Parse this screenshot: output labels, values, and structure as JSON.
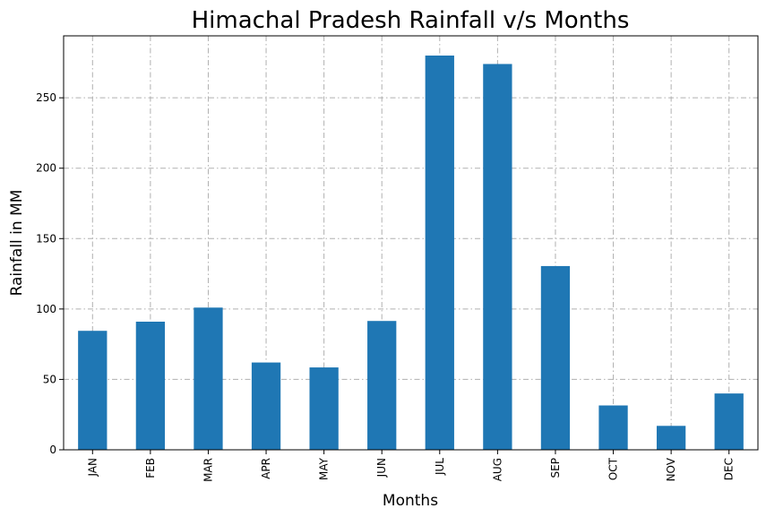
{
  "chart_data": {
    "type": "bar",
    "title": "Himachal Pradesh Rainfall v/s Months",
    "xlabel": "Months",
    "ylabel": "Rainfall in MM",
    "categories": [
      "JAN",
      "FEB",
      "MAR",
      "APR",
      "MAY",
      "JUN",
      "JUL",
      "AUG",
      "SEP",
      "OCT",
      "NOV",
      "DEC"
    ],
    "values": [
      84.5,
      91,
      101,
      62,
      58.5,
      91.5,
      280,
      274,
      130.5,
      31.5,
      17,
      40
    ],
    "ylim": [
      0,
      294
    ],
    "yticks": [
      0,
      50,
      100,
      150,
      200,
      250
    ],
    "grid": true,
    "bar_color": "#1f77b4"
  }
}
